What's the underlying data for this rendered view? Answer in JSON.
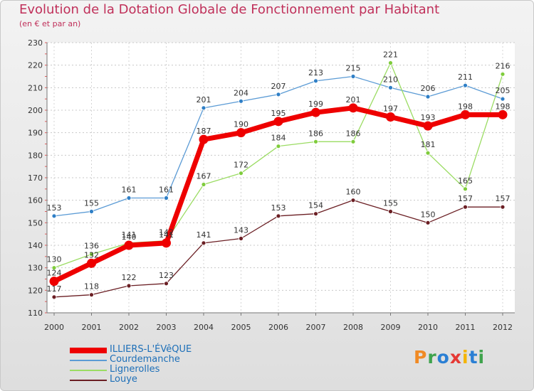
{
  "header": {
    "title": "Evolution de la Dotation Globale de Fonctionnement par Habitant",
    "subtitle": "(en € et par an)"
  },
  "brand": {
    "letters": [
      "P",
      "r",
      "o",
      "x",
      "i",
      "t",
      "i"
    ],
    "colors": [
      "#f08a24",
      "#3fa34d",
      "#2a7fd4",
      "#e53935",
      "#f4b400",
      "#2a7fd4",
      "#3fa34d"
    ]
  },
  "chart_data": {
    "type": "line",
    "title": "Evolution de la Dotation Globale de Fonctionnement par Habitant",
    "subtitle": "(en € et par an)",
    "xlabel": "",
    "ylabel": "",
    "ylim": [
      110,
      230
    ],
    "yticks": [
      110,
      120,
      130,
      140,
      150,
      160,
      170,
      180,
      190,
      200,
      210,
      220,
      230
    ],
    "grid": true,
    "legend_position": "bottom-left",
    "x": [
      "2000",
      "2001",
      "2002",
      "2003",
      "2004",
      "2005",
      "2006",
      "2007",
      "2008",
      "2009",
      "2010",
      "2011",
      "2012"
    ],
    "series": [
      {
        "name": "Courdemanche",
        "color": "#5b9bd5",
        "values": [
          153,
          155,
          161,
          161,
          201,
          204,
          207,
          213,
          215,
          210,
          206,
          211,
          205
        ]
      },
      {
        "name": "Lignerolles",
        "color": "#8bd64b",
        "values": [
          130,
          136,
          141,
          142,
          167,
          172,
          184,
          186,
          186,
          221,
          181,
          165,
          216
        ]
      },
      {
        "name": "Louye",
        "color": "#6b1f24",
        "values": [
          117,
          118,
          122,
          123,
          141,
          143,
          153,
          154,
          160,
          155,
          150,
          157,
          157
        ]
      },
      {
        "name": "ILLIERS-L'ÉVêQUE",
        "color": "#ee0000",
        "values": [
          124,
          132,
          140,
          141,
          187,
          190,
          195,
          199,
          201,
          197,
          193,
          198,
          198
        ]
      }
    ],
    "legend_order": [
      "ILLIERS-L'ÉVêQUE",
      "Courdemanche",
      "Lignerolles",
      "Louye"
    ]
  }
}
